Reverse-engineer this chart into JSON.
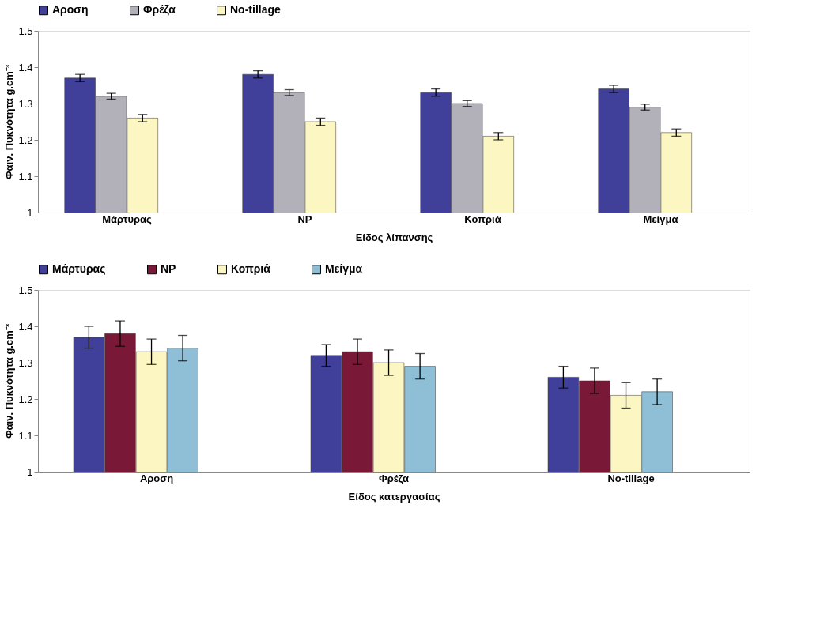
{
  "chart_data": [
    {
      "type": "bar",
      "xlabel": "Είδος λίπανσης",
      "ylabel": "Φαιν. Πυκνότητα g.cm⁻³",
      "categories": [
        "Μάρτυρας",
        "NP",
        "Κοπριά",
        "Μείγμα"
      ],
      "series": [
        {
          "name": "Αροση",
          "color": "#40409a",
          "values": [
            1.37,
            1.38,
            1.33,
            1.34
          ],
          "errors": [
            0.01,
            0.01,
            0.01,
            0.01
          ]
        },
        {
          "name": "Φρέζα",
          "color": "#b2b0b8",
          "values": [
            1.32,
            1.33,
            1.3,
            1.29
          ],
          "errors": [
            0.008,
            0.008,
            0.008,
            0.008
          ]
        },
        {
          "name": "No-tillage",
          "color": "#fbf6c2",
          "values": [
            1.26,
            1.25,
            1.21,
            1.22
          ],
          "errors": [
            0.01,
            0.01,
            0.01,
            0.01
          ]
        }
      ],
      "ylim": [
        1,
        1.5
      ],
      "yticks": [
        {
          "value": 1,
          "label": "1"
        },
        1.1,
        1.2,
        1.3,
        1.4,
        1.5
      ],
      "grid": false,
      "legend": "top"
    },
    {
      "type": "bar",
      "xlabel": "Είδος κατεργασίας",
      "ylabel": "Φαιν. Πυκνότητα g.cm⁻³",
      "categories": [
        "Αροση",
        "Φρέζα",
        "No-tillage"
      ],
      "series": [
        {
          "name": "Μάρτυρας",
          "color": "#40409a",
          "values": [
            1.37,
            1.32,
            1.26
          ],
          "errors": [
            0.03,
            0.03,
            0.03
          ]
        },
        {
          "name": "NP",
          "color": "#7a1838",
          "values": [
            1.38,
            1.33,
            1.25
          ],
          "errors": [
            0.035,
            0.035,
            0.035
          ]
        },
        {
          "name": "Κοπριά",
          "color": "#fbf6c2",
          "values": [
            1.33,
            1.3,
            1.21
          ],
          "errors": [
            0.035,
            0.035,
            0.035
          ]
        },
        {
          "name": "Μείγμα",
          "color": "#8fbfd6",
          "values": [
            1.34,
            1.29,
            1.22
          ],
          "errors": [
            0.035,
            0.035,
            0.035
          ]
        }
      ],
      "ylim": [
        1,
        1.5
      ],
      "yticks": [
        {
          "value": 1,
          "label": "1"
        },
        1.1,
        1.2,
        1.3,
        1.4,
        1.5
      ],
      "grid": false,
      "legend": "top"
    }
  ]
}
